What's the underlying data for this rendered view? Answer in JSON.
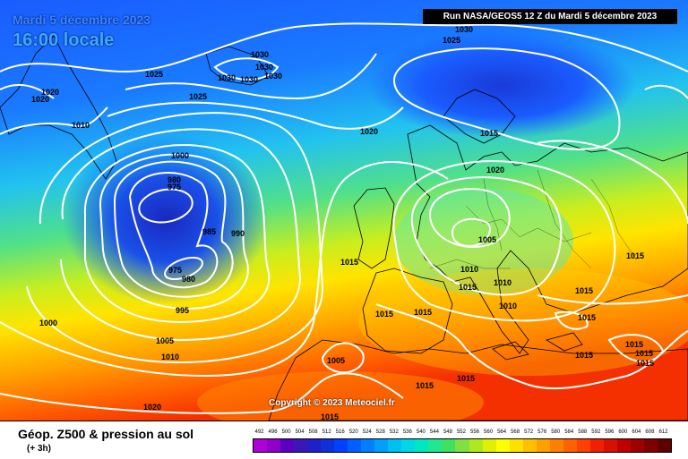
{
  "header": {
    "date": "Mardi 5 décembre 2023",
    "time": "16:00 locale",
    "run": "Run NASA/GEOS5 12 Z du Mardi 5 décembre 2023"
  },
  "copyright": "Copyright © 2023 Meteociel.fr",
  "legend": {
    "title": "Géop. Z500 & pression au sol",
    "subtitle": "(+ 3h)",
    "scale_values": [
      "492",
      "496",
      "500",
      "504",
      "508",
      "512",
      "516",
      "520",
      "524",
      "528",
      "532",
      "536",
      "540",
      "544",
      "548",
      "552",
      "556",
      "560",
      "564",
      "568",
      "572",
      "576",
      "580",
      "584",
      "588",
      "592",
      "596",
      "600",
      "604",
      "608",
      "612"
    ],
    "scale_colors": [
      "#b000d8",
      "#9000c8",
      "#5a00c0",
      "#3a18b8",
      "#2020c8",
      "#1030d8",
      "#0040ff",
      "#0060ff",
      "#0080ff",
      "#00a0ff",
      "#00c0f0",
      "#00d8e8",
      "#00e8c0",
      "#20e890",
      "#40e060",
      "#80e040",
      "#b0e820",
      "#e0f000",
      "#ffff00",
      "#ffe000",
      "#ffc000",
      "#ffa000",
      "#ff8000",
      "#ff6000",
      "#ff4000",
      "#f02000",
      "#d81000",
      "#c00000",
      "#a00000",
      "#800000",
      "#600000"
    ]
  },
  "isobars": [
    {
      "value": "1030"
    },
    {
      "value": "1030"
    },
    {
      "value": "1030"
    },
    {
      "value": "1030"
    },
    {
      "value": "1030"
    },
    {
      "value": "1030"
    },
    {
      "value": "1025"
    },
    {
      "value": "1025"
    },
    {
      "value": "1025"
    },
    {
      "value": "1020"
    },
    {
      "value": "1020"
    },
    {
      "value": "1020"
    },
    {
      "value": "1020"
    },
    {
      "value": "1020"
    },
    {
      "value": "1015"
    },
    {
      "value": "1015"
    },
    {
      "value": "1015"
    },
    {
      "value": "1015"
    },
    {
      "value": "1015"
    },
    {
      "value": "1015"
    },
    {
      "value": "1015"
    },
    {
      "value": "1015"
    },
    {
      "value": "1015"
    },
    {
      "value": "1015"
    },
    {
      "value": "1015"
    },
    {
      "value": "1015"
    },
    {
      "value": "1015"
    },
    {
      "value": "1015"
    },
    {
      "value": "1015"
    },
    {
      "value": "1010"
    },
    {
      "value": "1010"
    },
    {
      "value": "1010"
    },
    {
      "value": "1010"
    },
    {
      "value": "1010"
    },
    {
      "value": "1005"
    },
    {
      "value": "1005"
    },
    {
      "value": "1005"
    },
    {
      "value": "1000"
    },
    {
      "value": "1000"
    },
    {
      "value": "995"
    },
    {
      "value": "990"
    },
    {
      "value": "985"
    },
    {
      "value": "980"
    },
    {
      "value": "980"
    },
    {
      "value": "975"
    },
    {
      "value": "975"
    }
  ]
}
